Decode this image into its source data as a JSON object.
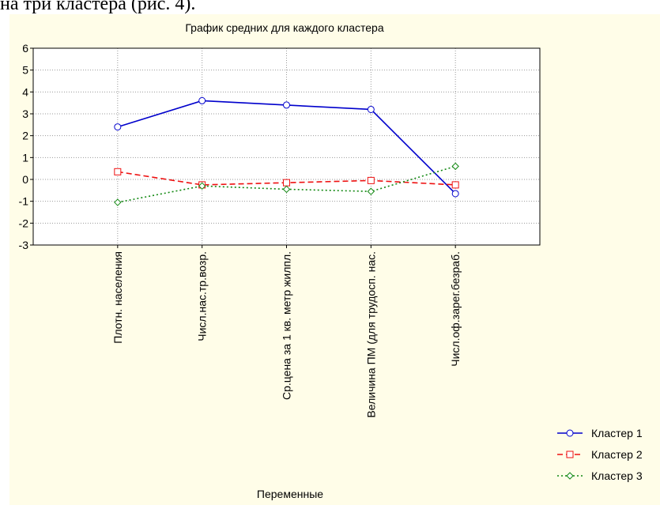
{
  "header_text": "на три кластера (рис. 4).",
  "chart_data": {
    "type": "line",
    "title": "График средних для каждого кластера",
    "x_label": "Переменные",
    "categories": [
      "Плотн. населения",
      "Числ.нас.тр.возр.",
      "Ср.цена за 1 кв. метр жилпл.",
      "Величина ПМ (для трудосп. нас.",
      "Числ.оф.зарег.безраб."
    ],
    "series": [
      {
        "name": "Кластер  1",
        "color": "#0000cc",
        "marker": "circle",
        "line_style": "solid",
        "values": [
          2.4,
          3.6,
          3.4,
          3.2,
          -0.65
        ]
      },
      {
        "name": "Кластер  2",
        "color": "#ee1111",
        "marker": "square",
        "line_style": "dashed",
        "values": [
          0.35,
          -0.25,
          -0.15,
          -0.05,
          -0.25
        ]
      },
      {
        "name": "Кластер  3",
        "color": "#118811",
        "marker": "diamond",
        "line_style": "dotted",
        "values": [
          -1.05,
          -0.3,
          -0.45,
          -0.55,
          0.6
        ]
      }
    ],
    "ylim": [
      -3,
      6
    ],
    "yticks": [
      -3,
      -2,
      -1,
      0,
      1,
      2,
      3,
      4,
      5,
      6
    ],
    "grid": true,
    "legend": "lower right"
  }
}
